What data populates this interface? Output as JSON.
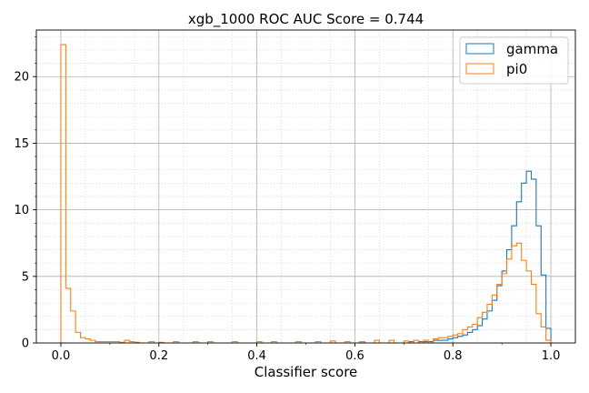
{
  "chart_data": {
    "type": "histogram",
    "title": "xgb_1000 ROC AUC Score = 0.744",
    "xlabel": "Classifier score",
    "ylabel": "",
    "xlim": [
      -0.05,
      1.05
    ],
    "ylim": [
      0,
      23.5
    ],
    "x_ticks": [
      0.0,
      0.2,
      0.4,
      0.6,
      0.8,
      1.0
    ],
    "x_tick_labels": [
      "0.0",
      "0.2",
      "0.4",
      "0.6",
      "0.8",
      "1.0"
    ],
    "y_ticks": [
      0,
      5,
      10,
      15,
      20
    ],
    "y_tick_labels": [
      "0",
      "5",
      "10",
      "15",
      "20"
    ],
    "grid": "major and minor, dotted",
    "legend_position": "top-right",
    "bin_width": 0.01,
    "series": [
      {
        "name": "gamma",
        "color": "#1f77b4",
        "histtype": "step",
        "bins": [
          [
            0.0,
            0.0
          ],
          [
            0.61,
            0.1
          ],
          [
            0.71,
            0.1
          ],
          [
            0.73,
            0.1
          ],
          [
            0.74,
            0.1
          ],
          [
            0.75,
            0.1
          ],
          [
            0.76,
            0.2
          ],
          [
            0.77,
            0.2
          ],
          [
            0.78,
            0.2
          ],
          [
            0.79,
            0.3
          ],
          [
            0.8,
            0.4
          ],
          [
            0.81,
            0.5
          ],
          [
            0.82,
            0.6
          ],
          [
            0.83,
            0.8
          ],
          [
            0.84,
            1.0
          ],
          [
            0.85,
            1.3
          ],
          [
            0.86,
            1.8
          ],
          [
            0.87,
            2.4
          ],
          [
            0.88,
            3.2
          ],
          [
            0.89,
            4.3
          ],
          [
            0.9,
            5.4
          ],
          [
            0.91,
            7.0
          ],
          [
            0.92,
            8.8
          ],
          [
            0.93,
            10.6
          ],
          [
            0.94,
            12.0
          ],
          [
            0.95,
            12.9
          ],
          [
            0.96,
            12.3
          ],
          [
            0.97,
            8.8
          ],
          [
            0.98,
            5.1
          ],
          [
            0.99,
            1.1
          ]
        ]
      },
      {
        "name": "pi0",
        "color": "#ff7f0e",
        "histtype": "step",
        "bins": [
          [
            0.0,
            22.4
          ],
          [
            0.01,
            4.1
          ],
          [
            0.02,
            2.4
          ],
          [
            0.03,
            0.8
          ],
          [
            0.04,
            0.4
          ],
          [
            0.05,
            0.3
          ],
          [
            0.06,
            0.2
          ],
          [
            0.07,
            0.1
          ],
          [
            0.08,
            0.1
          ],
          [
            0.09,
            0.1
          ],
          [
            0.1,
            0.1
          ],
          [
            0.11,
            0.1
          ],
          [
            0.12,
            0.05
          ],
          [
            0.13,
            0.2
          ],
          [
            0.14,
            0.1
          ],
          [
            0.15,
            0.05
          ],
          [
            0.18,
            0.1
          ],
          [
            0.2,
            0.05
          ],
          [
            0.23,
            0.1
          ],
          [
            0.27,
            0.1
          ],
          [
            0.3,
            0.1
          ],
          [
            0.35,
            0.1
          ],
          [
            0.4,
            0.1
          ],
          [
            0.43,
            0.1
          ],
          [
            0.48,
            0.1
          ],
          [
            0.52,
            0.1
          ],
          [
            0.55,
            0.15
          ],
          [
            0.58,
            0.1
          ],
          [
            0.61,
            0.1
          ],
          [
            0.64,
            0.2
          ],
          [
            0.67,
            0.2
          ],
          [
            0.7,
            0.15
          ],
          [
            0.72,
            0.2
          ],
          [
            0.74,
            0.2
          ],
          [
            0.76,
            0.3
          ],
          [
            0.77,
            0.4
          ],
          [
            0.78,
            0.4
          ],
          [
            0.79,
            0.5
          ],
          [
            0.8,
            0.6
          ],
          [
            0.81,
            0.7
          ],
          [
            0.82,
            1.0
          ],
          [
            0.83,
            1.2
          ],
          [
            0.84,
            1.4
          ],
          [
            0.85,
            1.9
          ],
          [
            0.86,
            2.3
          ],
          [
            0.87,
            2.9
          ],
          [
            0.88,
            3.6
          ],
          [
            0.89,
            4.4
          ],
          [
            0.9,
            5.2
          ],
          [
            0.91,
            6.3
          ],
          [
            0.92,
            7.3
          ],
          [
            0.93,
            7.5
          ],
          [
            0.94,
            6.2
          ],
          [
            0.95,
            5.4
          ],
          [
            0.96,
            4.4
          ],
          [
            0.97,
            2.2
          ],
          [
            0.98,
            1.2
          ],
          [
            0.99,
            0.2
          ]
        ]
      }
    ]
  }
}
